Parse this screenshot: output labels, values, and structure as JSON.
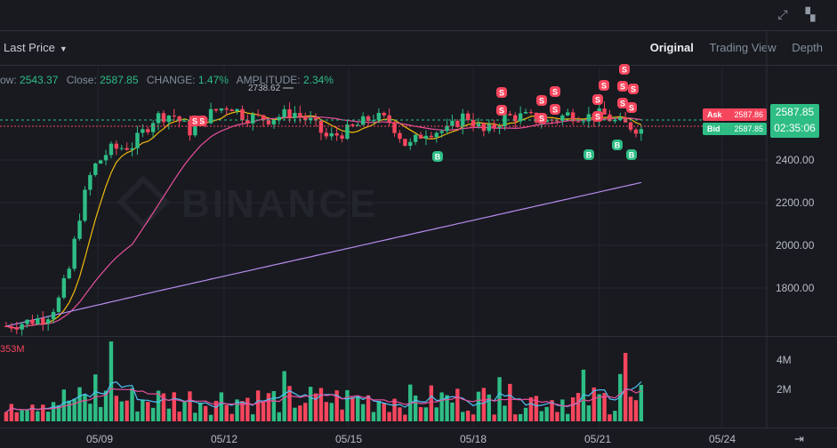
{
  "header": {
    "fullscreen_icon": "expand-icon",
    "layout_icon": "grid-icon"
  },
  "toolbar": {
    "price_type": "Last Price",
    "views": [
      "Original",
      "Trading View",
      "Depth"
    ],
    "active_view": "Original"
  },
  "ohlc": {
    "low_label": "ow:",
    "low": "2543.37",
    "close_label": "Close:",
    "close": "2587.85",
    "change_label": "CHANGE:",
    "change": "1.47%",
    "amplitude_label": "AMPLITUDE:",
    "amplitude": "2.34%"
  },
  "watermark": "BINANCE",
  "high_marker": "2738.62",
  "ask": {
    "label": "Ask",
    "price": "2587.86"
  },
  "bid": {
    "label": "Bid",
    "price": "2587.85"
  },
  "last": {
    "price": "2587.85",
    "countdown": "02:35:06"
  },
  "volume_label": "353M",
  "colors": {
    "up": "#2ebd85",
    "down": "#f6465d",
    "ma1": "#f0b90b",
    "ma2": "#e84f9b",
    "ma3": "#b98ef0",
    "vma": "#4fc3f7"
  },
  "chart_data": {
    "type": "candlestick",
    "price_ylim": [
      1730,
      2850
    ],
    "price_ticks": [
      "2400.00",
      "2200.00",
      "2000.00",
      "1800.00"
    ],
    "volume_ticks": [
      "4M",
      "2M"
    ],
    "x_ticks": [
      "05/09",
      "05/12",
      "05/15",
      "05/18",
      "05/21",
      "05/24"
    ],
    "markers": {
      "sell": "S",
      "buy": "B"
    }
  }
}
